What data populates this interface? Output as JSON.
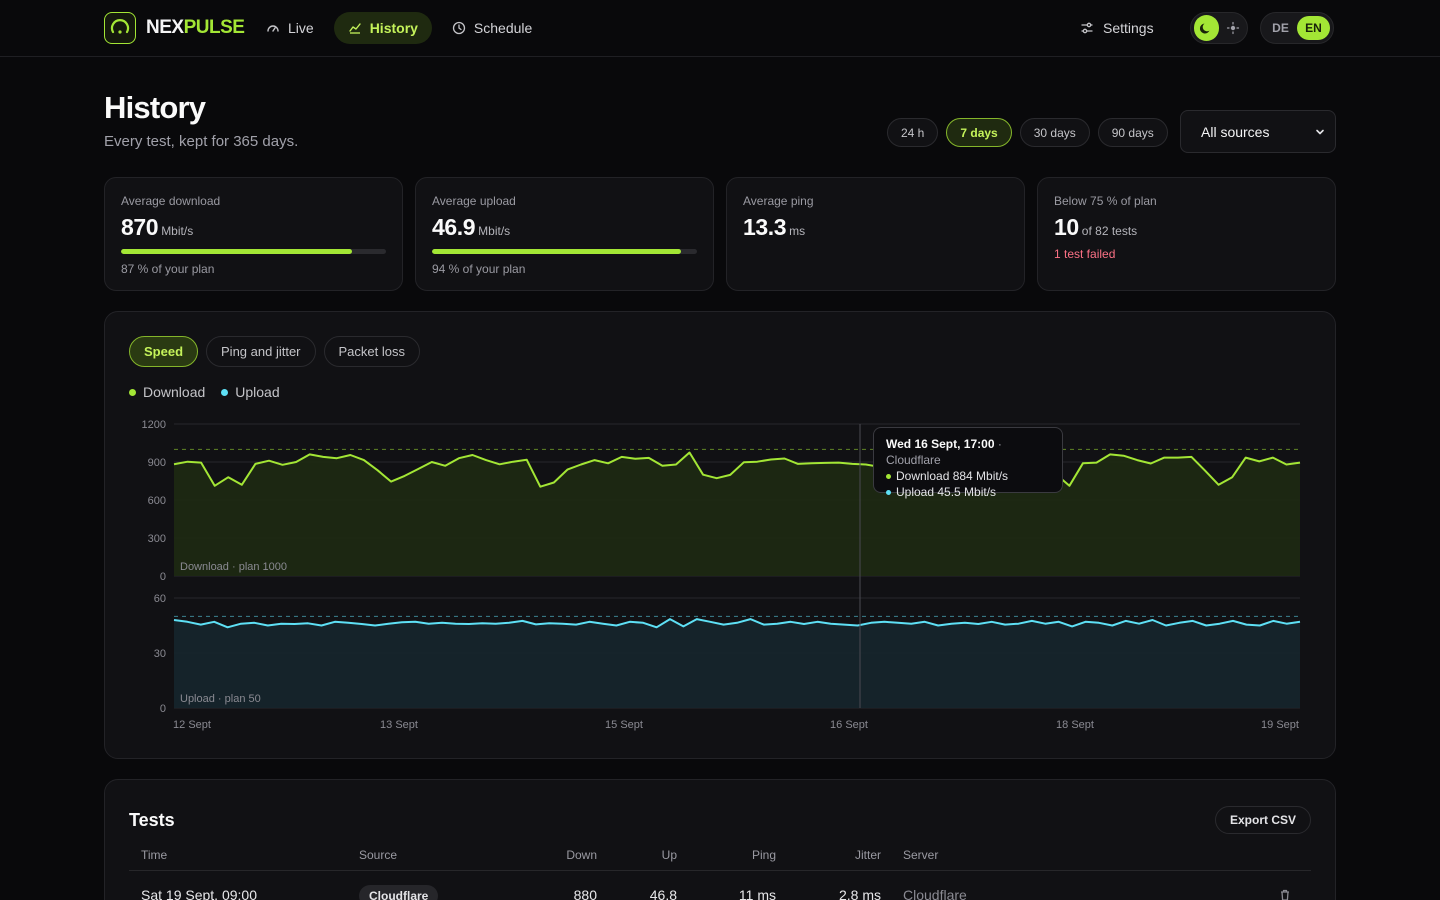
{
  "brand": {
    "part1": "NEX",
    "part2": "PULSE"
  },
  "nav": {
    "live": "Live",
    "history": "History",
    "schedule": "Schedule"
  },
  "header": {
    "settings": "Settings",
    "lang_de": "DE",
    "lang_en": "EN",
    "active_lang": "EN",
    "theme": "dark"
  },
  "page": {
    "title": "History",
    "subtitle": "Every test, kept for 365 days."
  },
  "range": {
    "options": [
      "24 h",
      "7 days",
      "30 days",
      "90 days"
    ],
    "selected": "7 days"
  },
  "source_filter": {
    "value": "All sources"
  },
  "stats": [
    {
      "label": "Average download",
      "value": "870",
      "unit": "Mbit/s",
      "note": "87 % of your plan",
      "progress": 0.87
    },
    {
      "label": "Average upload",
      "value": "46.9",
      "unit": "Mbit/s",
      "note": "94 % of your plan",
      "progress": 0.94
    },
    {
      "label": "Average ping",
      "value": "13.3",
      "unit": "ms"
    },
    {
      "label": "Below 75 % of plan",
      "value": "10",
      "unit": "of 82 tests",
      "alert": "1 test failed"
    }
  ],
  "chart_tabs": {
    "speed": "Speed",
    "ping": "Ping and jitter",
    "loss": "Packet loss",
    "selected": "Speed"
  },
  "legend": {
    "download": "Download",
    "upload": "Upload"
  },
  "colors": {
    "accent": "#a3e635",
    "download": "#a3e635",
    "upload": "#5ee0f5",
    "alert": "#fb7185"
  },
  "tooltip": {
    "title": "Wed 16 Sept, 17:00",
    "source": "· Cloudflare",
    "download": "Download 884 Mbit/s",
    "upload": "Upload 45.5 Mbit/s"
  },
  "chart_data": [
    {
      "type": "area",
      "series": [
        {
          "name": "Download",
          "values": [
            882,
            902,
            895,
            712,
            780,
            720,
            885,
            910,
            878,
            900,
            960,
            940,
            930,
            955,
            915,
            835,
            745,
            790,
            845,
            900,
            870,
            930,
            955,
            915,
            882,
            902,
            918,
            705,
            738,
            840,
            880,
            915,
            890,
            940,
            925,
            932,
            870,
            880,
            975,
            800,
            772,
            798,
            898,
            902,
            920,
            928,
            885,
            890,
            893,
            895,
            885,
            880,
            862,
            845,
            820,
            800,
            845,
            880,
            870,
            845,
            825,
            805,
            835,
            860,
            830,
            805,
            712,
            890,
            895,
            960,
            950,
            915,
            888,
            935,
            935,
            940,
            832,
            720,
            780,
            935,
            905,
            935,
            880,
            895
          ]
        }
      ],
      "reference_line": 1000,
      "reference_label": "Download · plan 1000",
      "ylim": [
        0,
        1200
      ],
      "yticks": [
        0,
        300,
        600,
        900,
        1200
      ],
      "x_tick_labels": [
        "12 Sept",
        "13 Sept",
        "15 Sept",
        "16 Sept",
        "18 Sept",
        "19 Sept"
      ]
    },
    {
      "type": "area",
      "series": [
        {
          "name": "Upload",
          "values": [
            48,
            47,
            45.5,
            47,
            44,
            46,
            46.5,
            45,
            46,
            45.8,
            46.2,
            45,
            47,
            46.5,
            45.8,
            45,
            46,
            46.8,
            47,
            46,
            46.5,
            46,
            45.8,
            46.2,
            46,
            46.5,
            47.5,
            45.6,
            46.2,
            46,
            45.5,
            47,
            46,
            45,
            47,
            46.5,
            44,
            48.5,
            44.5,
            48.5,
            47,
            45.5,
            46.5,
            48.5,
            45.5,
            46,
            47,
            45.8,
            47,
            46,
            45.5,
            45,
            46.5,
            47,
            46.5,
            46,
            47,
            45,
            46,
            46.5,
            45.8,
            47,
            45.5,
            46,
            47.5,
            46,
            47,
            44.5,
            47,
            46.5,
            45,
            47.5,
            46,
            48,
            45,
            46.5,
            47.5,
            45,
            46,
            47.5,
            45.5,
            45,
            47.5,
            46,
            47
          ]
        }
      ],
      "reference_line": 50,
      "reference_label": "Upload · plan 50",
      "ylim": [
        0,
        60
      ],
      "yticks": [
        0,
        30,
        60
      ]
    }
  ],
  "tests": {
    "title": "Tests",
    "export_label": "Export CSV",
    "columns": {
      "time": "Time",
      "source": "Source",
      "down": "Down",
      "up": "Up",
      "ping": "Ping",
      "jitter": "Jitter",
      "server": "Server"
    },
    "rows": [
      {
        "time": "Sat 19 Sept, 09:00",
        "source": "Cloudflare",
        "down": "880",
        "up": "46.8",
        "ping": "11 ms",
        "jitter": "2.8 ms",
        "server": "Cloudflare"
      }
    ]
  }
}
